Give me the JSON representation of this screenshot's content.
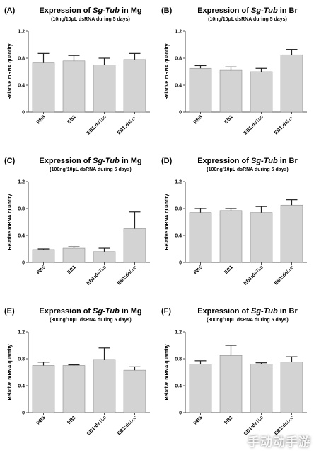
{
  "chart_data": [
    {
      "type": "bar",
      "panel_label": "(A)",
      "title_parts": [
        "Expression of ",
        "Sg-Tub",
        " in Mg"
      ],
      "subtitle": "(10ng/10μL dsRNA during 5 days)",
      "ylabel": "Relative mRNA quantity",
      "ylim": [
        0,
        1.2
      ],
      "yticks": [
        "0",
        "0.4",
        "0.8",
        "1.2"
      ],
      "categories": [
        [
          "PBS"
        ],
        [
          "EB1"
        ],
        [
          "EB1:ds",
          "Tub"
        ],
        [
          "EB1:ds",
          "Luc"
        ]
      ],
      "values": [
        0.73,
        0.76,
        0.7,
        0.78
      ],
      "errors": [
        0.14,
        0.08,
        0.1,
        0.09
      ]
    },
    {
      "type": "bar",
      "panel_label": "(B)",
      "title_parts": [
        "Expression of ",
        "Sg-Tub",
        " in Br"
      ],
      "subtitle": "(10ng/10μL dsRNA during 5 days)",
      "ylabel": "Relative mRNA quantity",
      "ylim": [
        0,
        1.2
      ],
      "yticks": [
        "0",
        "0.4",
        "0.8",
        "1.2"
      ],
      "categories": [
        [
          "PBS"
        ],
        [
          "EB1"
        ],
        [
          "EB1:ds",
          "Tub"
        ],
        [
          "EB1:ds",
          "Luc"
        ]
      ],
      "values": [
        0.65,
        0.62,
        0.6,
        0.85
      ],
      "errors": [
        0.04,
        0.05,
        0.05,
        0.08
      ]
    },
    {
      "type": "bar",
      "panel_label": "(C)",
      "title_parts": [
        "Expression of ",
        "Sg-Tub",
        " in Mg"
      ],
      "subtitle": "(100ng/10μL dsRNA during 5 days)",
      "ylabel": "Relative mRNA quantity",
      "ylim": [
        0,
        1.2
      ],
      "yticks": [
        "0",
        "0.4",
        "0.8",
        "1.2"
      ],
      "categories": [
        [
          "PBS"
        ],
        [
          "EB1"
        ],
        [
          "EB1:ds",
          "Tub"
        ],
        [
          "EB1:ds",
          "Luc"
        ]
      ],
      "values": [
        0.19,
        0.21,
        0.16,
        0.5
      ],
      "errors": [
        0.01,
        0.02,
        0.05,
        0.25
      ]
    },
    {
      "type": "bar",
      "panel_label": "(D)",
      "title_parts": [
        "Expression of ",
        "Sg-Tub",
        " in Br"
      ],
      "subtitle": "(100ng/10μL dsRNA during 5 days)",
      "ylabel": "Relative mRNA quantity",
      "ylim": [
        0,
        1.2
      ],
      "yticks": [
        "0",
        "0.4",
        "0.8",
        "1.2"
      ],
      "categories": [
        [
          "PBS"
        ],
        [
          "EB1"
        ],
        [
          "EB1:ds",
          "Tub"
        ],
        [
          "EB1:ds",
          "Luc"
        ]
      ],
      "values": [
        0.74,
        0.77,
        0.74,
        0.85
      ],
      "errors": [
        0.06,
        0.03,
        0.09,
        0.08
      ]
    },
    {
      "type": "bar",
      "panel_label": "(E)",
      "title_parts": [
        "Expression of ",
        "Sg-Tub",
        " in Mg"
      ],
      "subtitle": "(300ng/10μL dsRNA during 5 days)",
      "ylabel": "Relative mRNA quantity",
      "ylim": [
        0,
        1.2
      ],
      "yticks": [
        "0",
        "0.4",
        "0.8",
        "1.2"
      ],
      "categories": [
        [
          "PBS"
        ],
        [
          "EB1"
        ],
        [
          "EB1:ds",
          "Tub"
        ],
        [
          "EB1:ds",
          "Luc"
        ]
      ],
      "values": [
        0.7,
        0.7,
        0.79,
        0.63
      ],
      "errors": [
        0.05,
        0.01,
        0.17,
        0.05
      ]
    },
    {
      "type": "bar",
      "panel_label": "(F)",
      "title_parts": [
        "Expression of ",
        "Sg-Tub",
        " in Br"
      ],
      "subtitle": "(300ng/10μL dsRNA during 5 days)",
      "ylabel": "Relative mRNA quantity",
      "ylim": [
        0,
        1.2
      ],
      "yticks": [
        "0",
        "0.4",
        "0.8",
        "1.2"
      ],
      "categories": [
        [
          "PBS"
        ],
        [
          "EB1"
        ],
        [
          "EB1:ds",
          "Tub"
        ],
        [
          "EB1:ds",
          "Luc"
        ]
      ],
      "values": [
        0.72,
        0.85,
        0.72,
        0.75
      ],
      "errors": [
        0.05,
        0.15,
        0.02,
        0.08
      ]
    }
  ],
  "watermark": "手动动手游"
}
